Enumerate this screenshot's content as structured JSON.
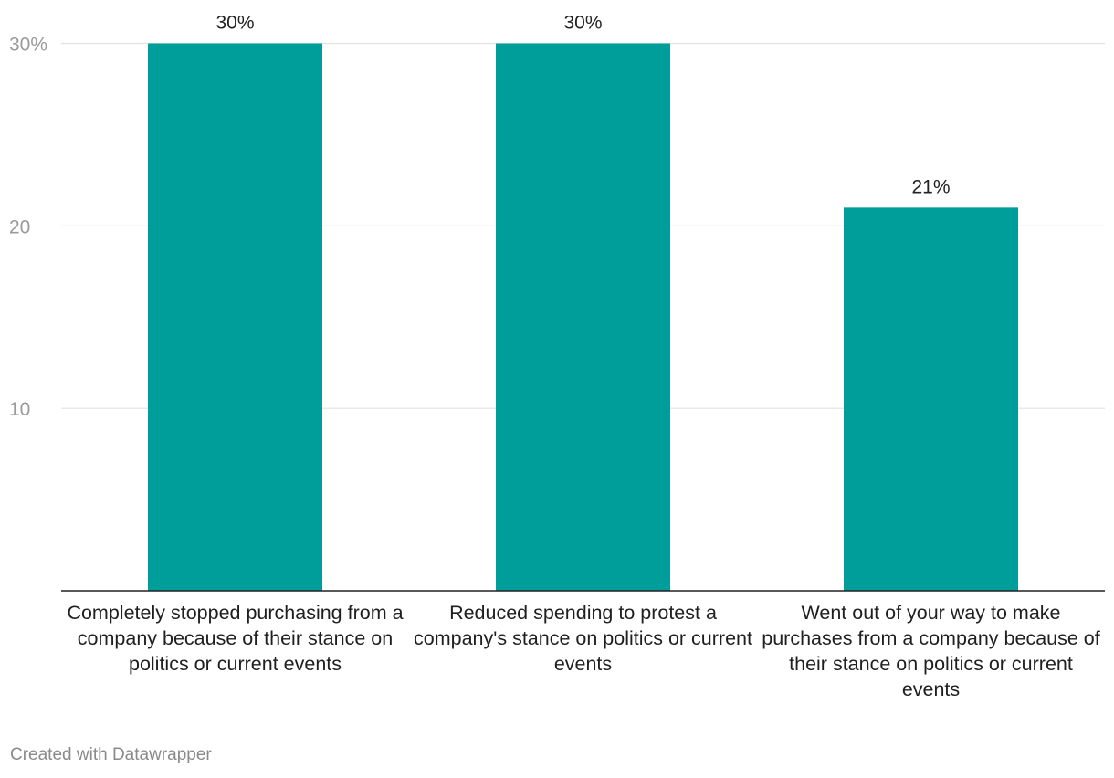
{
  "chart_data": {
    "type": "bar",
    "categories": [
      "Completely stopped purchasing from a company because of their stance on politics or current events",
      "Reduced spending to protest a company's stance on politics or current events",
      "Went out of your way to make purchases from a company because of their stance on politics or current events"
    ],
    "values": [
      30,
      30,
      21
    ],
    "value_labels": [
      "30%",
      "30%",
      "21%"
    ],
    "yticks": [
      {
        "value": 30,
        "label": "30%"
      },
      {
        "value": 20,
        "label": "20"
      },
      {
        "value": 10,
        "label": "10"
      }
    ],
    "ylim": [
      0,
      30
    ],
    "grid": true,
    "bar_color": "#009e9a",
    "title": "",
    "xlabel": "",
    "ylabel": ""
  },
  "footer": {
    "credit": "Created with Datawrapper"
  }
}
